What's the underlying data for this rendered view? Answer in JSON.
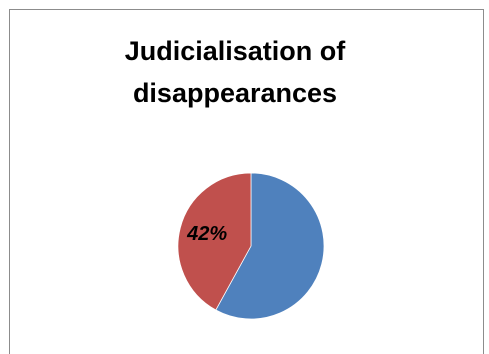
{
  "chart_data": {
    "type": "pie",
    "title": "Judicialisation of disappearances",
    "slices": [
      {
        "value": 58,
        "color": "#4F81BD"
      },
      {
        "value": 42,
        "label": "42%",
        "color": "#C0504D"
      }
    ],
    "start_angle_deg": 0,
    "direction": "clockwise",
    "legend": "none"
  }
}
